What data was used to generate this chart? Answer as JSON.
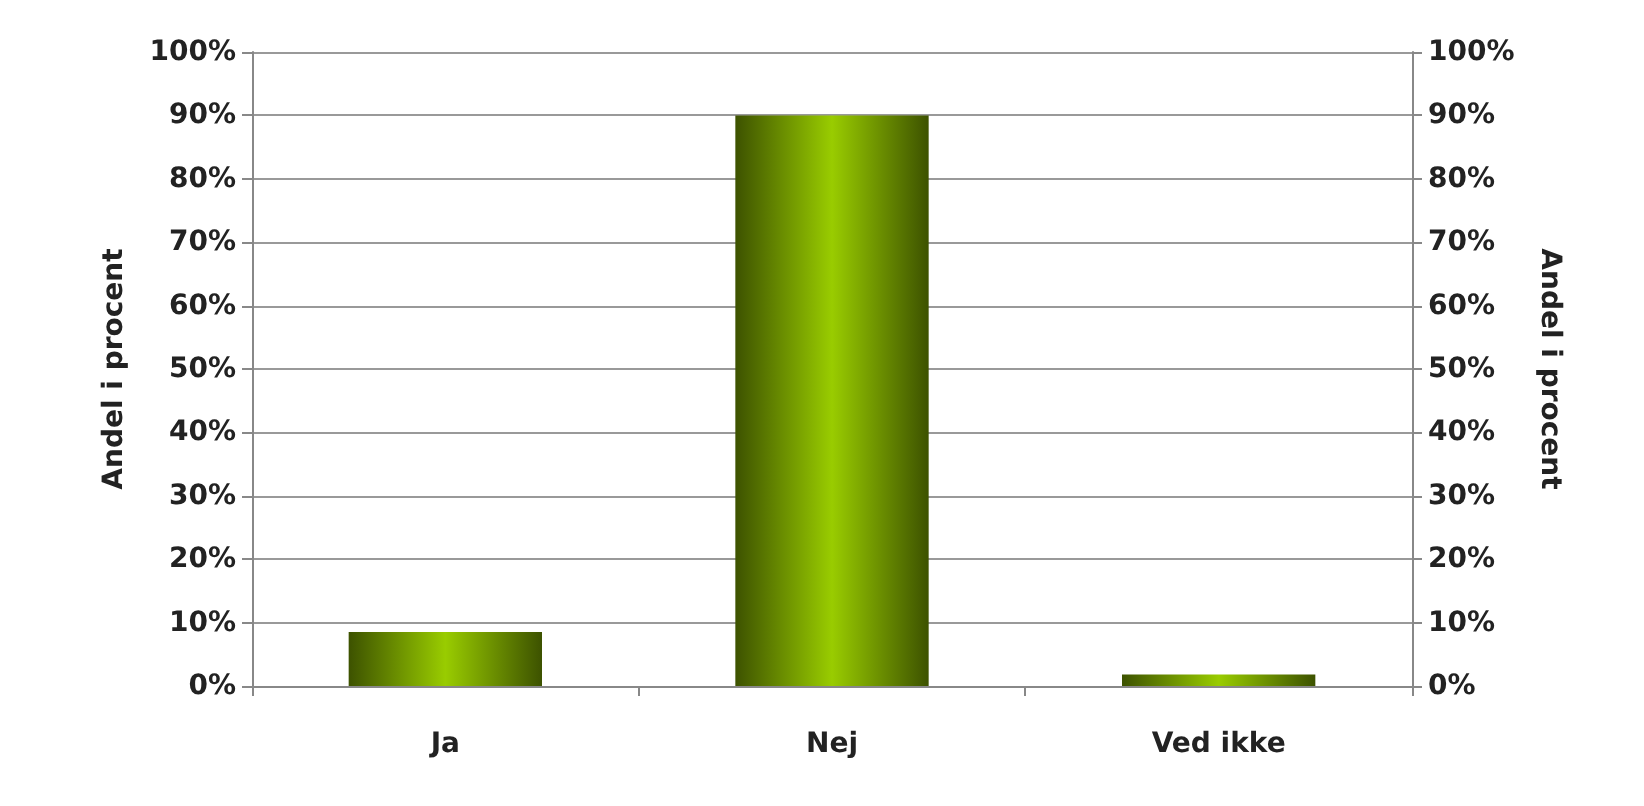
{
  "chart_data": {
    "type": "bar",
    "categories": [
      "Ja",
      "Nej",
      "Ved ikke"
    ],
    "values": [
      8.5,
      90,
      1.8
    ],
    "color": "#99cc00",
    "ylabel": "Andel i procent",
    "y2label": "Andel i procent",
    "ylim": [
      0,
      100
    ],
    "yticks": [
      {
        "value": 0,
        "label": "0%"
      },
      {
        "value": 10,
        "label": "10%"
      },
      {
        "value": 20,
        "label": "20%"
      },
      {
        "value": 30,
        "label": "30%"
      },
      {
        "value": 40,
        "label": "40%"
      },
      {
        "value": 50,
        "label": "50%"
      },
      {
        "value": 60,
        "label": "60%"
      },
      {
        "value": 70,
        "label": "70%"
      },
      {
        "value": 80,
        "label": "80%"
      },
      {
        "value": 90,
        "label": "90%"
      },
      {
        "value": 100,
        "label": "100%"
      }
    ],
    "y2lim": [
      0,
      100
    ],
    "y2ticks": [
      {
        "value": 0,
        "label": "0%"
      },
      {
        "value": 10,
        "label": "10%"
      },
      {
        "value": 20,
        "label": "20%"
      },
      {
        "value": 30,
        "label": "30%"
      },
      {
        "value": 40,
        "label": "40%"
      },
      {
        "value": 50,
        "label": "50%"
      },
      {
        "value": 60,
        "label": "60%"
      },
      {
        "value": 70,
        "label": "70%"
      },
      {
        "value": 80,
        "label": "80%"
      },
      {
        "value": 90,
        "label": "90%"
      },
      {
        "value": 100,
        "label": "100%"
      }
    ],
    "grid": "y"
  }
}
